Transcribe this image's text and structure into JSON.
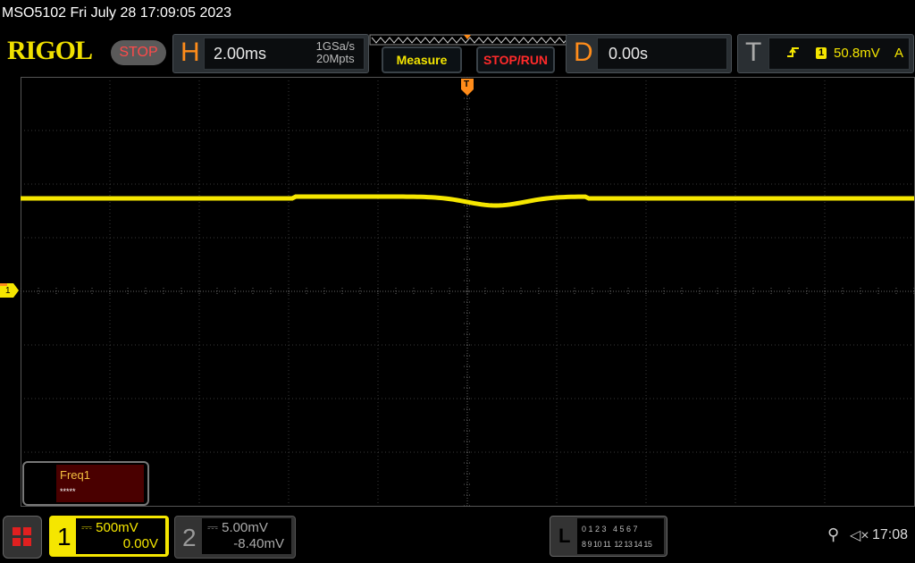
{
  "title": "MSO5102  Fri July 28 17:09:05 2023",
  "logo": "RIGOL",
  "run_state": "STOP",
  "horizontal": {
    "label": "H",
    "timebase": "2.00ms",
    "sample_rate": "1GSa/s",
    "memory_depth": "20Mpts"
  },
  "measure_label": "Measure",
  "stoprun_label": "STOP/RUN",
  "delay": {
    "label": "D",
    "value": "0.00s"
  },
  "trigger": {
    "label": "T",
    "source": "1",
    "level": "50.8mV",
    "mode": "A",
    "edge_icon": "rising-edge-icon"
  },
  "channel_marker": "1",
  "trigger_marker": "T",
  "measurement": {
    "name": "Freq1",
    "value": "*****"
  },
  "ch1": {
    "num": "1",
    "scale": "500mV",
    "offset": "0.00V",
    "color": "#f5e600"
  },
  "ch2": {
    "num": "2",
    "scale": "5.00mV",
    "offset": "-8.40mV"
  },
  "logic": {
    "label": "L",
    "row1": "0 1 2 3   4 5 6 7",
    "row2": "8 9 10 11  12 13 14 15"
  },
  "status": {
    "usb_icon": "usb-icon",
    "mute_icon": "speaker-muted-icon",
    "clock": "17:08"
  },
  "colors": {
    "trace": "#f5e600",
    "accent": "#ff8c1a",
    "stop": "#ff4a4a"
  }
}
